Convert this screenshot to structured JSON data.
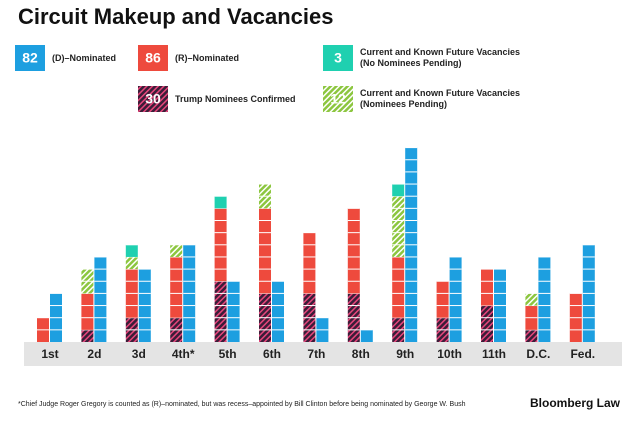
{
  "chart_data": {
    "type": "unit-stacked-bar",
    "title": "Circuit Makeup and Vacancies",
    "categories": [
      "1st",
      "2d",
      "3d",
      "4th*",
      "5th",
      "6th",
      "7th",
      "8th",
      "9th",
      "10th",
      "11th",
      "D.C.",
      "Fed."
    ],
    "series": [
      {
        "name": "(D)–Nominated",
        "legend_value": 82,
        "color": "#1d9fe0",
        "stack": "right",
        "values": [
          4,
          7,
          6,
          8,
          5,
          5,
          2,
          1,
          16,
          7,
          6,
          7,
          8
        ]
      },
      {
        "name": "(R)–Nominated",
        "legend_value": 86,
        "color": "#ee4a3d",
        "stack": "left",
        "values": [
          2,
          3,
          4,
          5,
          6,
          7,
          5,
          7,
          5,
          3,
          3,
          2,
          4
        ]
      },
      {
        "name": "Current and Known Future Vacancies\n(No Nominees Pending)",
        "legend_value": 3,
        "color": "#1fd0b0",
        "stack": "left",
        "values": [
          0,
          0,
          1,
          0,
          1,
          0,
          0,
          0,
          1,
          0,
          0,
          0,
          0
        ]
      },
      {
        "name": "Trump Nominees Confirmed",
        "legend_value": 30,
        "color": "#3b1d38",
        "hatch": "#e8467c",
        "stack": "left",
        "values": [
          0,
          1,
          2,
          2,
          5,
          4,
          4,
          4,
          2,
          2,
          3,
          1,
          0
        ]
      },
      {
        "name": "Current and Known Future Vacancies\n(Nominees Pending)",
        "legend_value": 12,
        "color": "#8cc63f",
        "hatch": "#ffffff",
        "stack": "left",
        "values": [
          0,
          2,
          1,
          1,
          0,
          2,
          0,
          0,
          5,
          0,
          0,
          1,
          0
        ]
      }
    ],
    "stack_order": [
      3,
      1,
      4,
      2
    ],
    "footnote": "*Chief Judge Roger Gregory is counted as (R)–nominated, but was recess–appointed by Bill Clinton before being nominated by George W. Bush",
    "source": "Bloomberg Law"
  }
}
